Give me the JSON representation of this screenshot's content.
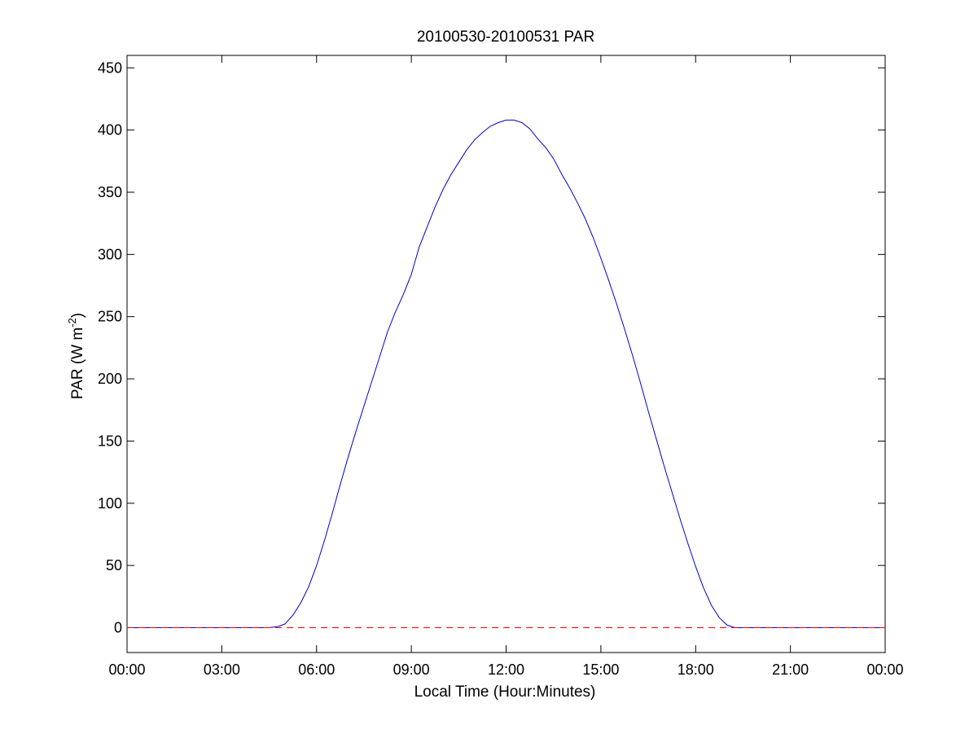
{
  "chart_data": {
    "type": "line",
    "title": "20100530-20100531 PAR",
    "xlabel": "Local Time (Hour:Minutes)",
    "ylabel": {
      "prefix": "PAR (W m",
      "superscript": "-2",
      "suffix": ")"
    },
    "x_unit": "hours since 00:00 local time",
    "xlim": [
      0,
      24
    ],
    "ylim": [
      -20,
      460
    ],
    "grid": false,
    "legend": "none",
    "x_ticks": [
      {
        "value": 0,
        "label": "00:00"
      },
      {
        "value": 3,
        "label": "03:00"
      },
      {
        "value": 6,
        "label": "06:00"
      },
      {
        "value": 9,
        "label": "09:00"
      },
      {
        "value": 12,
        "label": "12:00"
      },
      {
        "value": 15,
        "label": "15:00"
      },
      {
        "value": 18,
        "label": "18:00"
      },
      {
        "value": 21,
        "label": "21:00"
      },
      {
        "value": 24,
        "label": "00:00"
      }
    ],
    "y_ticks": [
      {
        "value": 0,
        "label": "0"
      },
      {
        "value": 50,
        "label": "50"
      },
      {
        "value": 100,
        "label": "100"
      },
      {
        "value": 150,
        "label": "150"
      },
      {
        "value": 200,
        "label": "200"
      },
      {
        "value": 250,
        "label": "250"
      },
      {
        "value": 300,
        "label": "300"
      },
      {
        "value": 350,
        "label": "350"
      },
      {
        "value": 400,
        "label": "400"
      },
      {
        "value": 450,
        "label": "450"
      }
    ],
    "series": [
      {
        "style": "solid",
        "color": "#0000cc",
        "points": [
          [
            0,
            0
          ],
          [
            4.5,
            0
          ],
          [
            4.8,
            1
          ],
          [
            5.0,
            3
          ],
          [
            5.25,
            10
          ],
          [
            5.5,
            20
          ],
          [
            5.75,
            33
          ],
          [
            6.0,
            50
          ],
          [
            6.25,
            70
          ],
          [
            6.5,
            92
          ],
          [
            6.75,
            115
          ],
          [
            7.0,
            137
          ],
          [
            7.25,
            158
          ],
          [
            7.5,
            178
          ],
          [
            7.75,
            198
          ],
          [
            8.0,
            218
          ],
          [
            8.25,
            238
          ],
          [
            8.5,
            254
          ],
          [
            8.75,
            268
          ],
          [
            9.0,
            284
          ],
          [
            9.25,
            306
          ],
          [
            9.5,
            322
          ],
          [
            9.75,
            338
          ],
          [
            10.0,
            352
          ],
          [
            10.25,
            364
          ],
          [
            10.5,
            374
          ],
          [
            10.75,
            384
          ],
          [
            11.0,
            392
          ],
          [
            11.25,
            398
          ],
          [
            11.5,
            403
          ],
          [
            11.75,
            406
          ],
          [
            12.0,
            408
          ],
          [
            12.25,
            408
          ],
          [
            12.5,
            406
          ],
          [
            12.75,
            401
          ],
          [
            13.0,
            393
          ],
          [
            13.25,
            386
          ],
          [
            13.5,
            377
          ],
          [
            13.75,
            365
          ],
          [
            14.0,
            354
          ],
          [
            14.25,
            342
          ],
          [
            14.5,
            329
          ],
          [
            14.75,
            314
          ],
          [
            15.0,
            297
          ],
          [
            15.25,
            279
          ],
          [
            15.5,
            260
          ],
          [
            15.75,
            240
          ],
          [
            16.0,
            219
          ],
          [
            16.25,
            197
          ],
          [
            16.5,
            174
          ],
          [
            16.75,
            152
          ],
          [
            17.0,
            130
          ],
          [
            17.25,
            109
          ],
          [
            17.5,
            88
          ],
          [
            17.75,
            68
          ],
          [
            18.0,
            49
          ],
          [
            18.25,
            32
          ],
          [
            18.5,
            18
          ],
          [
            18.75,
            8
          ],
          [
            19.0,
            2
          ],
          [
            19.25,
            0
          ],
          [
            24,
            0
          ]
        ]
      },
      {
        "style": "dashed",
        "color": "#ff0000",
        "points": [
          [
            0,
            0
          ],
          [
            24,
            0
          ]
        ]
      }
    ]
  }
}
